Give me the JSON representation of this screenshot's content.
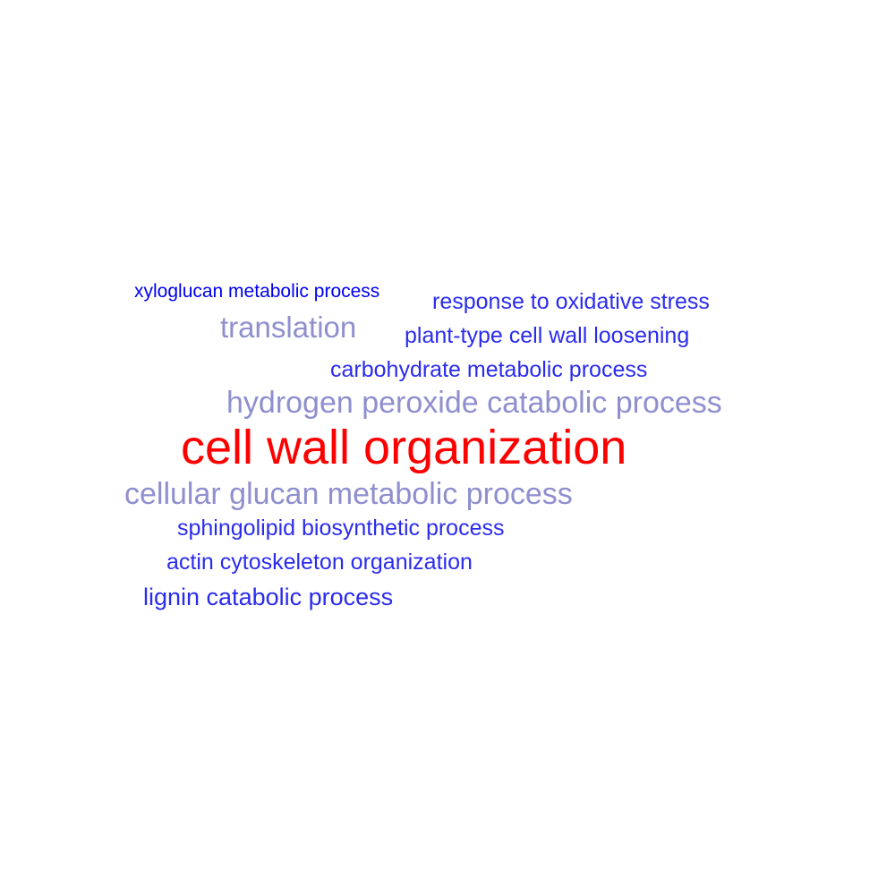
{
  "words": [
    {
      "key": "xyloglucan",
      "text": "xyloglucan metabolic process",
      "color": "#0000ee"
    },
    {
      "key": "oxidative",
      "text": "response to oxidative stress",
      "color": "#2b2bee"
    },
    {
      "key": "translation",
      "text": "translation",
      "color": "#8f8fcf"
    },
    {
      "key": "loosening",
      "text": "plant-type cell wall loosening",
      "color": "#2b2bee"
    },
    {
      "key": "carbo",
      "text": "carbohydrate metabolic process",
      "color": "#2b2bee"
    },
    {
      "key": "hydrogen",
      "text": "hydrogen peroxide catabolic process",
      "color": "#8f8fcf"
    },
    {
      "key": "cellwall",
      "text": "cell wall organization",
      "color": "#ff0000"
    },
    {
      "key": "glucan",
      "text": "cellular glucan metabolic process",
      "color": "#8f8fcf"
    },
    {
      "key": "sphingo",
      "text": "sphingolipid biosynthetic process",
      "color": "#2b2bee"
    },
    {
      "key": "actin",
      "text": "actin cytoskeleton organization",
      "color": "#2b2bee"
    },
    {
      "key": "lignin",
      "text": "lignin catabolic process",
      "color": "#2b2bee"
    }
  ]
}
